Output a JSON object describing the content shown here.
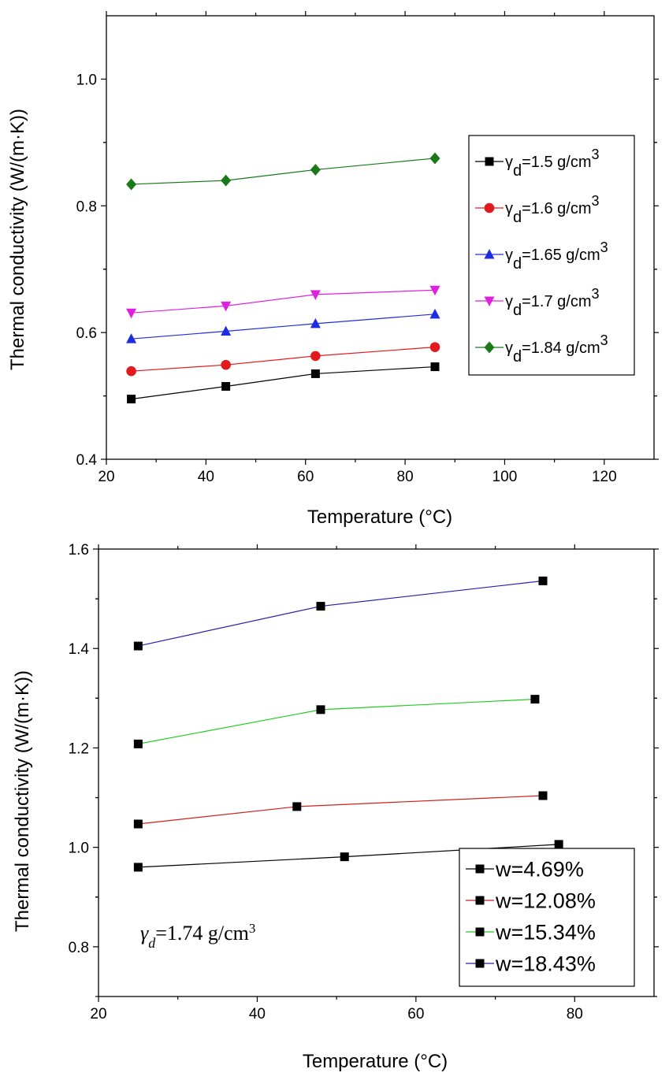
{
  "chart_data": [
    {
      "type": "line",
      "xlabel": "Temperature (°C)",
      "ylabel": "Thermal conductivity (W/(m·K))",
      "xlim": [
        20,
        130
      ],
      "ylim": [
        0.4,
        1.1
      ],
      "xticks": [
        "20",
        "40",
        "60",
        "80",
        "100",
        "120"
      ],
      "yticks": [
        "0.4",
        "0.6",
        "0.8",
        "1.0"
      ],
      "grid": false,
      "legend_position": "right",
      "series": [
        {
          "name": "γd=1.5 g/cm3",
          "color": "#000000",
          "marker": "square",
          "x": [
            25,
            44,
            62,
            86
          ],
          "y": [
            0.495,
            0.515,
            0.535,
            0.546
          ]
        },
        {
          "name": "γd=1.6 g/cm3",
          "color": "#e31a1c",
          "marker": "circle",
          "x": [
            25,
            44,
            62,
            86
          ],
          "y": [
            0.539,
            0.549,
            0.563,
            0.577
          ]
        },
        {
          "name": "γd=1.65 g/cm3",
          "color": "#1f2de0",
          "marker": "triangle-up",
          "x": [
            25,
            44,
            62,
            86
          ],
          "y": [
            0.59,
            0.602,
            0.614,
            0.629
          ]
        },
        {
          "name": "γd=1.7 g/cm3",
          "color": "#e020e0",
          "marker": "triangle-down",
          "x": [
            25,
            44,
            62,
            86
          ],
          "y": [
            0.631,
            0.642,
            0.66,
            0.667
          ]
        },
        {
          "name": "γd=1.84 g/cm3",
          "color": "#1a7a1a",
          "marker": "diamond",
          "x": [
            25,
            44,
            62,
            86
          ],
          "y": [
            0.834,
            0.84,
            0.857,
            0.875
          ]
        }
      ]
    },
    {
      "type": "line",
      "xlabel": "Temperature (°C)",
      "ylabel": "Thermal conductivity (W/(m·K))",
      "xlim": [
        20,
        90
      ],
      "ylim": [
        0.7,
        1.6
      ],
      "xticks": [
        "20",
        "40",
        "60",
        "80"
      ],
      "yticks": [
        "0.8",
        "1.0",
        "1.2",
        "1.4",
        "1.6"
      ],
      "grid": false,
      "legend_position": "bottom-right",
      "annotation": "γd=1.74 g/cm3",
      "series": [
        {
          "name": "w=4.69%",
          "color": "#000000",
          "line_color": "#000000",
          "marker": "square",
          "x": [
            25,
            51,
            78
          ],
          "y": [
            0.96,
            0.981,
            1.006
          ]
        },
        {
          "name": "w=12.08%",
          "color": "#000000",
          "line_color": "#cc2222",
          "marker": "square",
          "x": [
            25,
            45,
            76
          ],
          "y": [
            1.047,
            1.082,
            1.104
          ]
        },
        {
          "name": "w=15.34%",
          "color": "#000000",
          "line_color": "#22cc22",
          "marker": "square",
          "x": [
            25,
            48,
            75
          ],
          "y": [
            1.208,
            1.277,
            1.298
          ]
        },
        {
          "name": "w=18.43%",
          "color": "#000000",
          "line_color": "#2222aa",
          "marker": "square",
          "x": [
            25,
            48,
            76
          ],
          "y": [
            1.405,
            1.485,
            1.536
          ]
        }
      ]
    }
  ]
}
